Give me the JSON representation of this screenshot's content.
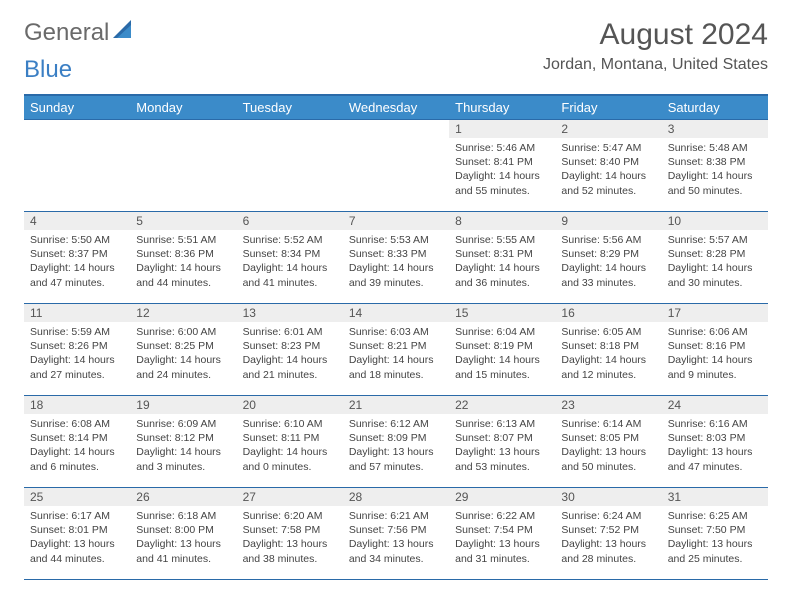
{
  "logo": {
    "text1": "General",
    "text2": "Blue"
  },
  "title": "August 2024",
  "location": "Jordan, Montana, United States",
  "header_bg": "#3b8bc9",
  "border_color": "#2a6aa8",
  "daynum_bg": "#eeeeee",
  "day_headers": [
    "Sunday",
    "Monday",
    "Tuesday",
    "Wednesday",
    "Thursday",
    "Friday",
    "Saturday"
  ],
  "weeks": [
    [
      null,
      null,
      null,
      null,
      {
        "n": "1",
        "sr": "5:46 AM",
        "ss": "8:41 PM",
        "dl": "14 hours and 55 minutes."
      },
      {
        "n": "2",
        "sr": "5:47 AM",
        "ss": "8:40 PM",
        "dl": "14 hours and 52 minutes."
      },
      {
        "n": "3",
        "sr": "5:48 AM",
        "ss": "8:38 PM",
        "dl": "14 hours and 50 minutes."
      }
    ],
    [
      {
        "n": "4",
        "sr": "5:50 AM",
        "ss": "8:37 PM",
        "dl": "14 hours and 47 minutes."
      },
      {
        "n": "5",
        "sr": "5:51 AM",
        "ss": "8:36 PM",
        "dl": "14 hours and 44 minutes."
      },
      {
        "n": "6",
        "sr": "5:52 AM",
        "ss": "8:34 PM",
        "dl": "14 hours and 41 minutes."
      },
      {
        "n": "7",
        "sr": "5:53 AM",
        "ss": "8:33 PM",
        "dl": "14 hours and 39 minutes."
      },
      {
        "n": "8",
        "sr": "5:55 AM",
        "ss": "8:31 PM",
        "dl": "14 hours and 36 minutes."
      },
      {
        "n": "9",
        "sr": "5:56 AM",
        "ss": "8:29 PM",
        "dl": "14 hours and 33 minutes."
      },
      {
        "n": "10",
        "sr": "5:57 AM",
        "ss": "8:28 PM",
        "dl": "14 hours and 30 minutes."
      }
    ],
    [
      {
        "n": "11",
        "sr": "5:59 AM",
        "ss": "8:26 PM",
        "dl": "14 hours and 27 minutes."
      },
      {
        "n": "12",
        "sr": "6:00 AM",
        "ss": "8:25 PM",
        "dl": "14 hours and 24 minutes."
      },
      {
        "n": "13",
        "sr": "6:01 AM",
        "ss": "8:23 PM",
        "dl": "14 hours and 21 minutes."
      },
      {
        "n": "14",
        "sr": "6:03 AM",
        "ss": "8:21 PM",
        "dl": "14 hours and 18 minutes."
      },
      {
        "n": "15",
        "sr": "6:04 AM",
        "ss": "8:19 PM",
        "dl": "14 hours and 15 minutes."
      },
      {
        "n": "16",
        "sr": "6:05 AM",
        "ss": "8:18 PM",
        "dl": "14 hours and 12 minutes."
      },
      {
        "n": "17",
        "sr": "6:06 AM",
        "ss": "8:16 PM",
        "dl": "14 hours and 9 minutes."
      }
    ],
    [
      {
        "n": "18",
        "sr": "6:08 AM",
        "ss": "8:14 PM",
        "dl": "14 hours and 6 minutes."
      },
      {
        "n": "19",
        "sr": "6:09 AM",
        "ss": "8:12 PM",
        "dl": "14 hours and 3 minutes."
      },
      {
        "n": "20",
        "sr": "6:10 AM",
        "ss": "8:11 PM",
        "dl": "14 hours and 0 minutes."
      },
      {
        "n": "21",
        "sr": "6:12 AM",
        "ss": "8:09 PM",
        "dl": "13 hours and 57 minutes."
      },
      {
        "n": "22",
        "sr": "6:13 AM",
        "ss": "8:07 PM",
        "dl": "13 hours and 53 minutes."
      },
      {
        "n": "23",
        "sr": "6:14 AM",
        "ss": "8:05 PM",
        "dl": "13 hours and 50 minutes."
      },
      {
        "n": "24",
        "sr": "6:16 AM",
        "ss": "8:03 PM",
        "dl": "13 hours and 47 minutes."
      }
    ],
    [
      {
        "n": "25",
        "sr": "6:17 AM",
        "ss": "8:01 PM",
        "dl": "13 hours and 44 minutes."
      },
      {
        "n": "26",
        "sr": "6:18 AM",
        "ss": "8:00 PM",
        "dl": "13 hours and 41 minutes."
      },
      {
        "n": "27",
        "sr": "6:20 AM",
        "ss": "7:58 PM",
        "dl": "13 hours and 38 minutes."
      },
      {
        "n": "28",
        "sr": "6:21 AM",
        "ss": "7:56 PM",
        "dl": "13 hours and 34 minutes."
      },
      {
        "n": "29",
        "sr": "6:22 AM",
        "ss": "7:54 PM",
        "dl": "13 hours and 31 minutes."
      },
      {
        "n": "30",
        "sr": "6:24 AM",
        "ss": "7:52 PM",
        "dl": "13 hours and 28 minutes."
      },
      {
        "n": "31",
        "sr": "6:25 AM",
        "ss": "7:50 PM",
        "dl": "13 hours and 25 minutes."
      }
    ]
  ],
  "labels": {
    "sunrise": "Sunrise:",
    "sunset": "Sunset:",
    "daylight": "Daylight:"
  }
}
